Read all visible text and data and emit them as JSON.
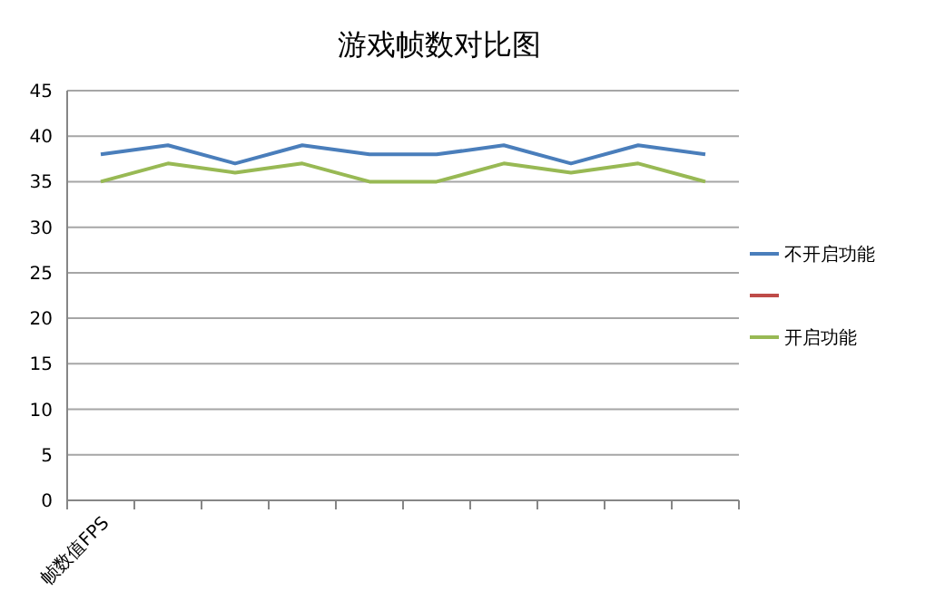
{
  "chart_data": {
    "type": "line",
    "title": "游戏帧数对比图",
    "categories": [
      "帧数值FPS",
      null,
      null,
      null,
      null,
      null,
      null,
      null,
      null,
      null
    ],
    "series": [
      {
        "name": "不开启功能",
        "color": "#4a7ebb",
        "values": [
          38,
          39,
          37,
          39,
          38,
          38,
          39,
          37,
          39,
          38
        ]
      },
      {
        "color": "#be4b48",
        "values": [
          null,
          null,
          null,
          null,
          null,
          null,
          null,
          null,
          null,
          null
        ]
      },
      {
        "name": "开启功能",
        "color": "#98b954",
        "values": [
          35,
          37,
          36,
          37,
          35,
          35,
          37,
          36,
          37,
          35
        ]
      }
    ],
    "ylim": [
      0,
      45
    ],
    "yticks": [
      0,
      5,
      10,
      15,
      20,
      25,
      30,
      35,
      40,
      45
    ],
    "grid": "y",
    "legend": "right",
    "marker": "none"
  }
}
